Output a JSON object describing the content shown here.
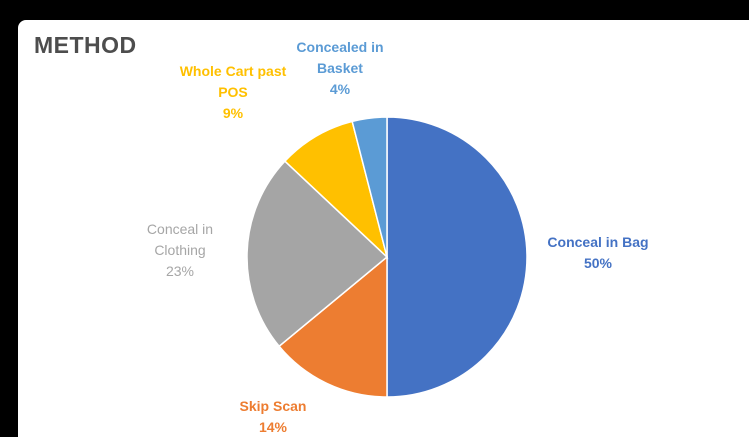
{
  "chart_data": {
    "type": "pie",
    "title": "METHOD",
    "slices": [
      {
        "label_lines": [
          "Conceal in Bag"
        ],
        "value": 50,
        "value_label": "50%",
        "color": "#4472c4"
      },
      {
        "label_lines": [
          "Skip Scan"
        ],
        "value": 14,
        "value_label": "14%",
        "color": "#ed7d31"
      },
      {
        "label_lines": [
          "Conceal in",
          "Clothing"
        ],
        "value": 23,
        "value_label": "23%",
        "color": "#a5a5a5"
      },
      {
        "label_lines": [
          "Whole Cart past",
          "POS"
        ],
        "value": 9,
        "value_label": "9%",
        "color": "#ffc000"
      },
      {
        "label_lines": [
          "Concealed in",
          "Basket"
        ],
        "value": 4,
        "value_label": "4%",
        "color": "#5b9bd5"
      }
    ],
    "start": "12 o'clock",
    "direction": "clockwise",
    "legend": "none"
  }
}
